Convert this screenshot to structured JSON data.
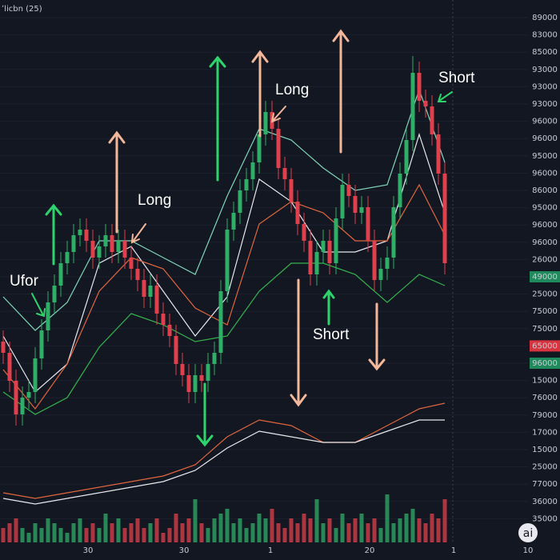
{
  "chart_data": {
    "type": "candlestick",
    "title": "ʼlicbn (25)",
    "ylim": [
      0,
      100
    ],
    "up_color": "#2fae68",
    "down_color": "#e0404b",
    "open": [
      39,
      37,
      32,
      26,
      29,
      30,
      36,
      41,
      46,
      49,
      53,
      55,
      58,
      59,
      57,
      54,
      56,
      58,
      55,
      57,
      54,
      52,
      50,
      47,
      49,
      44,
      42,
      40,
      35,
      33,
      30,
      33,
      32,
      35,
      37,
      48,
      59,
      62,
      66,
      68,
      71,
      76,
      80,
      77,
      70,
      68,
      64,
      60,
      57,
      51,
      55,
      57,
      53,
      61,
      67,
      65,
      62,
      63,
      57,
      50,
      52,
      54,
      63,
      69,
      75,
      87,
      82,
      81,
      76,
      69
    ],
    "high": [
      41,
      39,
      34,
      31,
      32,
      38,
      43,
      48,
      51,
      55,
      57,
      60,
      61,
      61,
      59,
      58,
      60,
      60,
      59,
      59,
      56,
      54,
      52,
      51,
      51,
      46,
      44,
      42,
      37,
      35,
      35,
      35,
      37,
      39,
      50,
      61,
      64,
      68,
      70,
      73,
      78,
      82,
      82,
      79,
      72,
      70,
      66,
      62,
      59,
      57,
      59,
      59,
      63,
      69,
      69,
      67,
      65,
      65,
      59,
      54,
      56,
      65,
      71,
      77,
      90,
      89,
      84,
      83,
      78,
      71
    ],
    "low": [
      35,
      30,
      24,
      24,
      27,
      28,
      34,
      39,
      44,
      47,
      51,
      53,
      56,
      55,
      52,
      52,
      54,
      53,
      53,
      52,
      50,
      48,
      45,
      45,
      42,
      40,
      38,
      33,
      31,
      28,
      28,
      30,
      30,
      33,
      35,
      46,
      57,
      60,
      64,
      66,
      69,
      74,
      75,
      68,
      66,
      62,
      58,
      55,
      49,
      49,
      53,
      51,
      51,
      59,
      63,
      60,
      60,
      55,
      48,
      48,
      50,
      52,
      61,
      67,
      73,
      80,
      79,
      74,
      67,
      51
    ],
    "close": [
      37,
      32,
      26,
      29,
      30,
      36,
      41,
      46,
      49,
      53,
      55,
      58,
      59,
      57,
      54,
      56,
      58,
      55,
      57,
      54,
      52,
      50,
      47,
      49,
      44,
      42,
      40,
      35,
      33,
      30,
      33,
      32,
      35,
      37,
      48,
      59,
      62,
      66,
      68,
      71,
      76,
      80,
      77,
      70,
      68,
      64,
      60,
      57,
      51,
      55,
      57,
      53,
      61,
      67,
      65,
      62,
      63,
      57,
      50,
      52,
      54,
      63,
      69,
      75,
      87,
      82,
      81,
      76,
      69,
      53
    ],
    "volume": [
      3,
      4,
      5,
      3,
      2,
      4,
      3,
      5,
      4,
      3,
      2,
      4,
      5,
      3,
      4,
      3,
      6,
      4,
      5,
      3,
      4,
      5,
      3,
      4,
      5,
      2,
      3,
      6,
      4,
      5,
      9,
      4,
      3,
      5,
      6,
      7,
      4,
      5,
      3,
      4,
      6,
      5,
      7,
      4,
      3,
      5,
      4,
      6,
      5,
      9,
      4,
      5,
      3,
      6,
      4,
      5,
      6,
      4,
      5,
      3,
      10,
      4,
      5,
      6,
      7,
      5,
      4,
      6,
      5,
      9
    ],
    "lines": [
      {
        "color": "#7fd6b8",
        "x": [
          0,
          5,
          10,
          15,
          20,
          25,
          30,
          35,
          40,
          45,
          50,
          55,
          60,
          65,
          69
        ],
        "values": [
          47,
          41,
          46,
          57,
          57,
          54,
          51,
          65,
          77,
          75,
          70,
          66,
          67,
          84,
          71
        ]
      },
      {
        "color": "#e8e8ee",
        "x": [
          0,
          5,
          10,
          15,
          20,
          25,
          30,
          35,
          40,
          45,
          50,
          55,
          60,
          65,
          69
        ],
        "values": [
          40,
          30,
          35,
          53,
          56,
          48,
          40,
          47,
          68,
          64,
          55,
          55,
          57,
          76,
          62
        ]
      },
      {
        "color": "#e0663e",
        "x": [
          0,
          5,
          10,
          15,
          20,
          25,
          30,
          35,
          40,
          45,
          50,
          55,
          60,
          65,
          69
        ],
        "values": [
          34,
          27,
          35,
          48,
          54,
          52,
          45,
          42,
          60,
          64,
          62,
          57,
          57,
          67,
          58
        ]
      },
      {
        "color": "#35b34d",
        "x": [
          0,
          5,
          10,
          15,
          20,
          25,
          30,
          35,
          40,
          45,
          50,
          55,
          60,
          65,
          69
        ],
        "values": [
          30,
          26,
          29,
          38,
          44,
          42,
          39,
          40,
          48,
          53,
          53,
          51,
          46,
          51,
          49
        ]
      },
      {
        "color": "#e0663e",
        "x": [
          0,
          5,
          10,
          15,
          20,
          25,
          30,
          35,
          40,
          45,
          50,
          55,
          60,
          65,
          69
        ],
        "values": [
          12,
          11,
          12,
          13,
          14,
          15,
          17,
          22,
          25,
          24,
          21,
          21,
          24,
          27,
          28
        ]
      },
      {
        "color": "#e8e8ee",
        "x": [
          0,
          5,
          10,
          15,
          20,
          25,
          30,
          35,
          40,
          45,
          50,
          55,
          60,
          65,
          69
        ],
        "values": [
          11,
          10,
          11,
          12,
          13,
          14,
          16,
          20,
          23,
          22,
          21,
          21,
          23,
          25,
          25
        ]
      }
    ],
    "price_labels": [
      "89000",
      "83000",
      "85000",
      "93000",
      "93000",
      "93000",
      "96000",
      "96000",
      "95000",
      "96000",
      "86000",
      "95000",
      "96000",
      "96000",
      "26000",
      {
        "text": "49000",
        "color": "#1f8a5c"
      },
      "25000",
      "75000",
      "75000",
      {
        "text": "65000",
        "color": "#d8343f"
      },
      {
        "text": "96000",
        "color": "#1f8a5c"
      },
      "15000",
      "76000",
      "79000",
      "17000",
      "15000",
      "25000",
      "77000",
      "36000",
      "35000"
    ],
    "x_labels": [
      "30",
      "30",
      "1",
      "20",
      "1",
      "10"
    ],
    "annotations": [
      "Ufor",
      "Long",
      "Long",
      "Short",
      "Short"
    ],
    "watermark": "ai"
  }
}
